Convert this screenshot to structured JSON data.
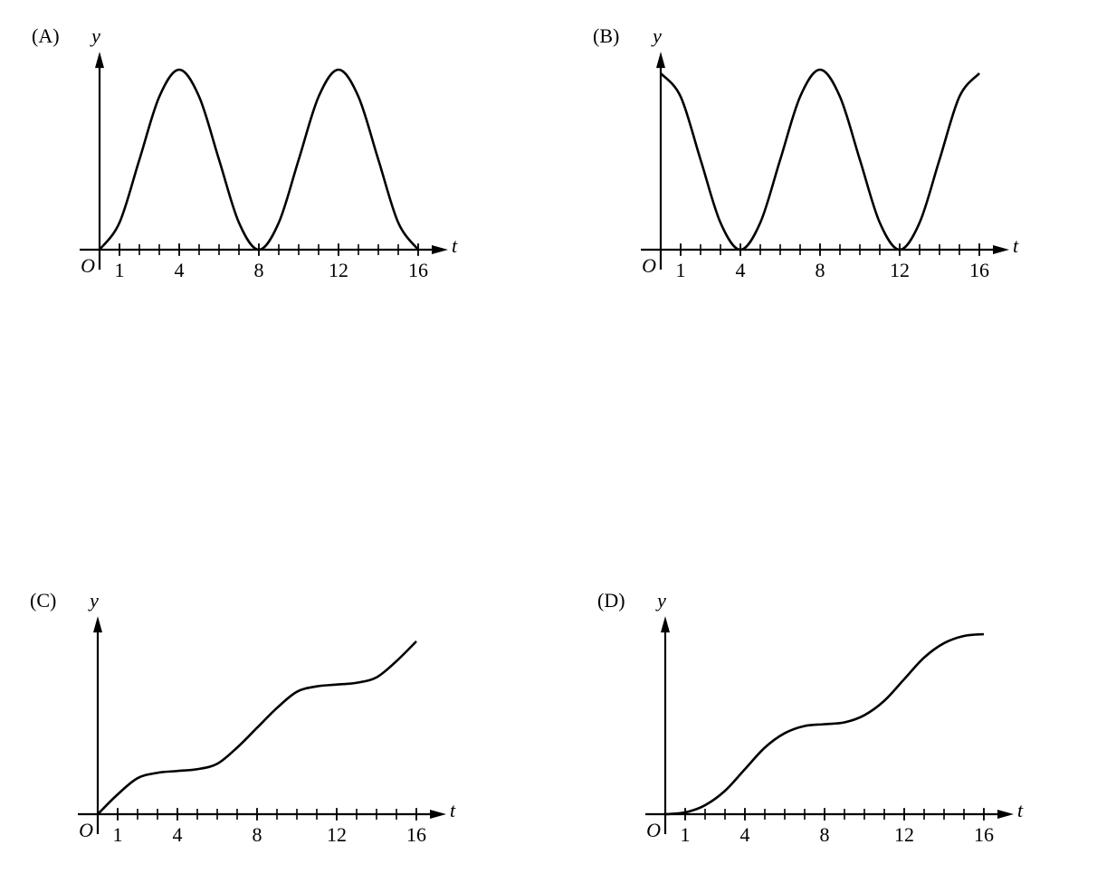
{
  "chart_data": [
    {
      "type": "line",
      "title": "(A)",
      "xlabel": "t",
      "ylabel": "y",
      "origin_label": "O",
      "color": "#000000",
      "x": [
        0,
        1,
        2,
        3,
        4,
        5,
        6,
        7,
        8,
        9,
        10,
        11,
        12,
        13,
        14,
        15,
        16
      ],
      "values": [
        0,
        0.15,
        0.5,
        0.85,
        1,
        0.85,
        0.5,
        0.15,
        0,
        0.15,
        0.5,
        0.85,
        1,
        0.85,
        0.5,
        0.15,
        0
      ],
      "xlim": [
        -1,
        17.5
      ],
      "ylim": [
        0,
        1.1
      ],
      "xticks": [
        1,
        4,
        8,
        12,
        16
      ],
      "minor_xtick_step": 1
    },
    {
      "type": "line",
      "title": "(B)",
      "xlabel": "t",
      "ylabel": "y",
      "origin_label": "O",
      "color": "#000000",
      "x": [
        0,
        1,
        2,
        3,
        4,
        5,
        6,
        7,
        8,
        9,
        10,
        11,
        12,
        13,
        14,
        15,
        16
      ],
      "values": [
        0.98,
        0.85,
        0.5,
        0.15,
        0,
        0.15,
        0.5,
        0.85,
        1,
        0.85,
        0.5,
        0.15,
        0,
        0.15,
        0.5,
        0.85,
        0.98
      ],
      "xlim": [
        -1,
        17.5
      ],
      "ylim": [
        0,
        1.1
      ],
      "xticks": [
        1,
        4,
        8,
        12,
        16
      ],
      "minor_xtick_step": 1
    },
    {
      "type": "line",
      "title": "(C)",
      "xlabel": "t",
      "ylabel": "y",
      "origin_label": "O",
      "color": "#000000",
      "x": [
        0,
        1,
        2,
        3,
        4,
        5,
        6,
        7,
        8,
        9,
        10,
        11,
        12,
        13,
        14,
        15,
        16
      ],
      "values": [
        0,
        0.11,
        0.2,
        0.23,
        0.24,
        0.25,
        0.28,
        0.37,
        0.48,
        0.59,
        0.68,
        0.71,
        0.72,
        0.73,
        0.76,
        0.85,
        0.96
      ],
      "xlim": [
        -1,
        17.5
      ],
      "ylim": [
        0,
        1.1
      ],
      "xticks": [
        1,
        4,
        8,
        12,
        16
      ],
      "minor_xtick_step": 1
    },
    {
      "type": "line",
      "title": "(D)",
      "xlabel": "t",
      "ylabel": "y",
      "origin_label": "O",
      "color": "#000000",
      "x": [
        0,
        1,
        2,
        3,
        4,
        5,
        6,
        7,
        8,
        9,
        10,
        11,
        12,
        13,
        14,
        15,
        16
      ],
      "values": [
        0,
        0.01,
        0.05,
        0.13,
        0.25,
        0.37,
        0.45,
        0.49,
        0.5,
        0.51,
        0.55,
        0.63,
        0.75,
        0.87,
        0.95,
        0.99,
        1
      ],
      "xlim": [
        -1,
        17.5
      ],
      "ylim": [
        0,
        1.1
      ],
      "xticks": [
        1,
        4,
        8,
        12,
        16
      ],
      "minor_xtick_step": 1
    }
  ]
}
